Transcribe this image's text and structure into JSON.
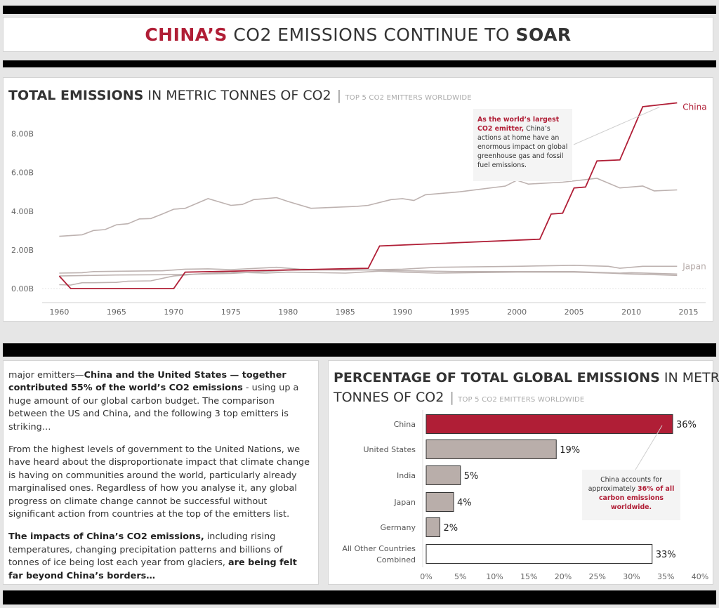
{
  "header": {
    "title_part1": "CHINA’S",
    "title_part2": " CO2 EMISSIONS CONTINUE TO ",
    "title_part3": "SOAR"
  },
  "line_chart_title": {
    "bold": "TOTAL EMISSIONS",
    "normal": " IN METRIC TONNES OF CO2 ",
    "separator": "|",
    "sub": " TOP 5 CO2 EMITTERS WORLDWIDE"
  },
  "line_annotation": {
    "bold": "As the world’s largest CO2 emitter,",
    "rest": " China’s actions at home have an enormous impact on global greenhouse gas and fossil fuel emissions."
  },
  "bar_chart_title": {
    "bold": "PERCENTAGE OF TOTAL GLOBAL EMISSIONS",
    "normal1": " IN METRIC",
    "normal2": "TONNES OF CO2 ",
    "separator": "|",
    "sub": " TOP 5 CO2 EMITTERS WORLDWIDE"
  },
  "bar_annotation": {
    "text1": "China accounts for approximately ",
    "red": "36% of all carbon emissions worldwide."
  },
  "article": {
    "p1_a": "major emitters—",
    "p1_b": "China and the United States — together contributed 55% of the world’s CO2 emissions",
    "p1_c": " - using up a huge amount of our global carbon budget. The comparison between the US and China, and the following 3 top emitters is striking…",
    "p2": "From the highest levels of government to the United Nations, we have heard about the disproportionate impact that climate change is having on  communities around the world, particularly already marginalised ones. Regardless of how you analyse it, any global progress on climate change cannot be successful without significant action from countries at the top of the emitters list.",
    "p3_a": "The impacts of China’s CO2 emissions,",
    "p3_b": " including rising temperatures, changing precipitation patterns and billions of tonnes of ice being lost each year from glaciers, ",
    "p3_c": "are being felt far beyond China’s borders…"
  },
  "colors": {
    "china": "#b01e36",
    "other": "#bdb2b0",
    "bar_other": "#b9aeaa"
  },
  "chart_data": [
    {
      "type": "line",
      "xlabel": "",
      "ylabel": "",
      "ylim": [
        0,
        9.8
      ],
      "xlim": [
        1958.5,
        2016.5
      ],
      "x_ticks": [
        1960,
        1965,
        1970,
        1975,
        1980,
        1985,
        1990,
        1995,
        2000,
        2005,
        2010,
        2015
      ],
      "y_ticks": [
        0,
        2,
        4,
        6,
        8
      ],
      "y_tick_labels": [
        "0.00B",
        "2.00B",
        "4.00B",
        "6.00B",
        "8.00B"
      ],
      "series": [
        {
          "name": "China",
          "highlight": true,
          "x": [
            1960,
            1961,
            1970,
            1971,
            1987,
            1988,
            2002,
            2003,
            2004,
            2005,
            2006,
            2007,
            2009,
            2011,
            2014
          ],
          "y": [
            0.65,
            0.0,
            0.0,
            0.85,
            1.05,
            2.2,
            2.55,
            3.85,
            3.9,
            5.2,
            5.25,
            6.6,
            6.65,
            9.4,
            9.6
          ]
        },
        {
          "name": "",
          "x": [
            1960,
            1962,
            1963,
            1964,
            1965,
            1966,
            1967,
            1968,
            1969,
            1970,
            1971,
            1973,
            1975,
            1976,
            1977,
            1979,
            1980,
            1982,
            1984,
            1986,
            1987,
            1989,
            1990,
            1991,
            1992,
            1995,
            1999,
            2000,
            2001,
            2004,
            2007,
            2009,
            2011,
            2012,
            2014
          ],
          "y": [
            2.7,
            2.78,
            3.0,
            3.05,
            3.3,
            3.35,
            3.6,
            3.62,
            3.85,
            4.1,
            4.15,
            4.65,
            4.3,
            4.35,
            4.6,
            4.7,
            4.5,
            4.15,
            4.2,
            4.25,
            4.3,
            4.6,
            4.65,
            4.55,
            4.85,
            5.0,
            5.3,
            5.6,
            5.4,
            5.5,
            5.7,
            5.2,
            5.3,
            5.05,
            5.1
          ]
        },
        {
          "name": "Japan",
          "x": [
            1960,
            1962,
            1963,
            1966,
            1969,
            1971,
            1973,
            1975,
            1979,
            1981,
            1985,
            1990,
            1993,
            2000,
            2005,
            2008,
            2009,
            2011,
            2014
          ],
          "y": [
            0.8,
            0.82,
            0.88,
            0.9,
            0.92,
            1.0,
            1.02,
            0.98,
            1.1,
            1.0,
            0.95,
            1.0,
            1.1,
            1.15,
            1.2,
            1.15,
            1.05,
            1.15,
            1.15
          ]
        },
        {
          "name": "",
          "x": [
            1960,
            1961,
            1962,
            1963,
            1965,
            1966,
            1968,
            1970,
            1972,
            1975,
            1978,
            1980,
            1985,
            1988,
            1990,
            1993,
            2000,
            2005,
            2008,
            2010,
            2012,
            2014
          ],
          "y": [
            0.2,
            0.18,
            0.3,
            0.3,
            0.32,
            0.38,
            0.4,
            0.65,
            0.75,
            0.85,
            0.8,
            0.85,
            0.8,
            0.9,
            0.85,
            0.8,
            0.85,
            0.85,
            0.8,
            0.75,
            0.72,
            0.68
          ]
        },
        {
          "name": "",
          "x": [
            1960,
            1965,
            1970,
            1975,
            1980,
            1985,
            1988,
            1990,
            1995,
            2000,
            2005,
            2009,
            2010,
            2014
          ],
          "y": [
            0.65,
            0.7,
            0.72,
            0.78,
            0.95,
            0.97,
            0.95,
            0.92,
            0.88,
            0.88,
            0.88,
            0.8,
            0.82,
            0.75
          ]
        }
      ]
    },
    {
      "type": "bar",
      "orientation": "horizontal",
      "categories": [
        "China",
        "United States",
        "India",
        "Japan",
        "Germany",
        "All Other Countries Combined"
      ],
      "category_lines": [
        [
          "China"
        ],
        [
          "United States"
        ],
        [
          "India"
        ],
        [
          "Japan"
        ],
        [
          "Germany"
        ],
        [
          "All Other Countries",
          "Combined"
        ]
      ],
      "values": [
        36,
        19,
        5,
        4,
        2,
        33
      ],
      "value_labels": [
        "36%",
        "19%",
        "5%",
        "4%",
        "2%",
        "33%"
      ],
      "xlim": [
        0,
        40
      ],
      "x_ticks": [
        0,
        5,
        10,
        15,
        20,
        25,
        30,
        35,
        40
      ],
      "x_tick_labels": [
        "0%",
        "5%",
        "10%",
        "15%",
        "20%",
        "25%",
        "30%",
        "35%",
        "40%"
      ]
    }
  ]
}
